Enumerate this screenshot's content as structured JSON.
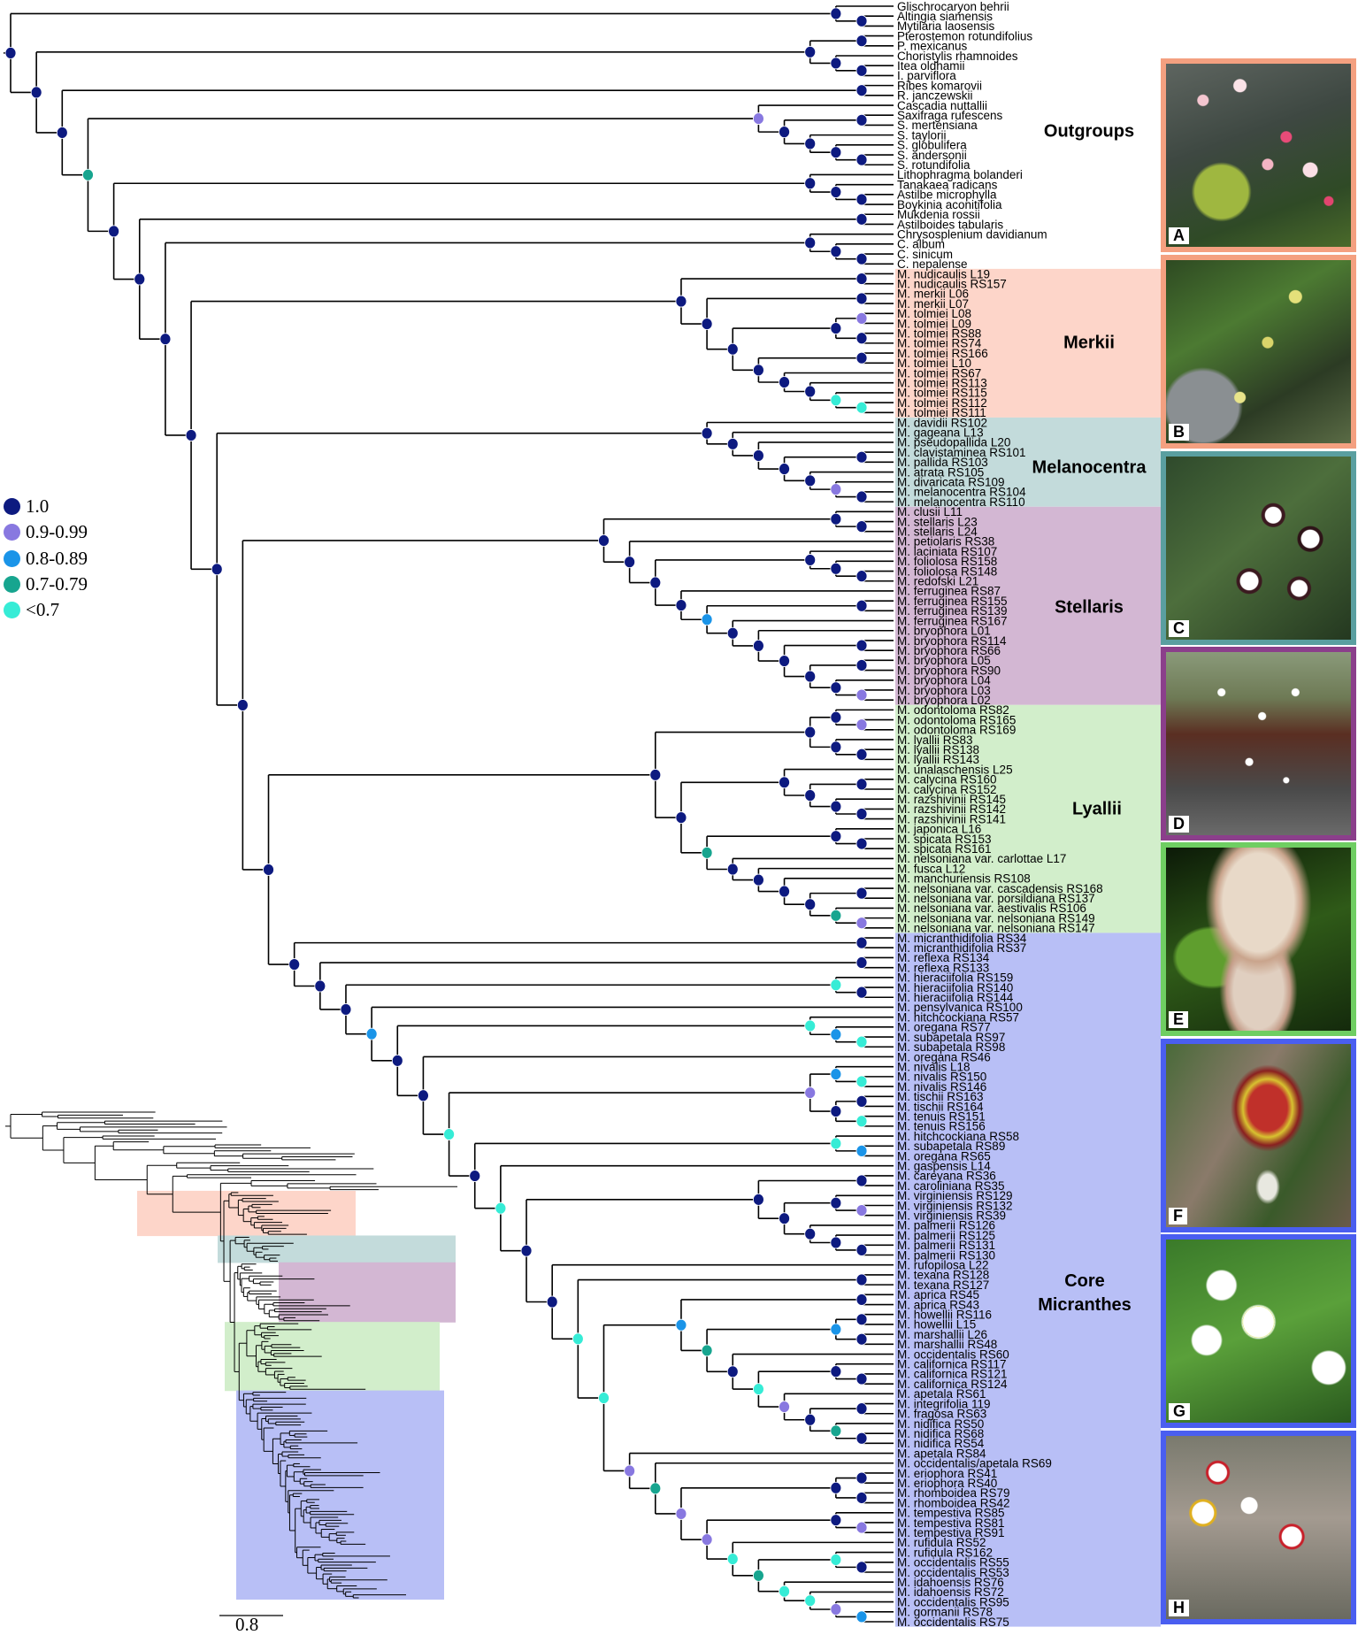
{
  "support_legend": [
    {
      "key": "A",
      "label": "1.0",
      "color": "#0d1a80"
    },
    {
      "key": "P",
      "label": "0.9-0.99",
      "color": "#8878e0"
    },
    {
      "key": "B",
      "label": "0.8-0.89",
      "color": "#1a94e8"
    },
    {
      "key": "T",
      "label": "0.7-0.79",
      "color": "#17a58f"
    },
    {
      "key": "C",
      "label": "<0.7",
      "color": "#36ecd6"
    }
  ],
  "tree": {
    "newick": "((Glischrocaryon behrii,(Altingia siamensis,Mytilaria laosensis)A)A,(((Pterostemon rotundifolius,P. mexicanus)A,(Choristylis rhamnoides,(Itea oldhamii,I. parviflora)A)A)A,((Ribes komarovii,R. janczewskii)A,((Cascadia nuttallii,((Saxifraga rufescens,S. mertensiana)A,(S. taylorii,(S. globulifera,(S. andersonii,S. rotundifolia)A)A)A)A)P,((Lithophragma bolanderi,(Tanakaea radicans,(Astilbe microphylla,Boykinia aconitifolia)A)A)A,((Mukdenia rossii,Astilboides tabularis)A,((Chrysosplenium davidianum,(C. album,(C. sinicum,C. nepalense)A)A)A,(((M. nudicaulis L19,M. nudicaulis RS157)A,((M. merkii L06,M. merkii L07)A,(((M. tolmiei L08,M. tolmiei L09)P,(M. tolmiei RS88,M. tolmiei RS74)A)A,((M. tolmiei RS166,M. tolmiei L10)A,(M. tolmiei RS67,(M. tolmiei RS113,(M. tolmiei RS115,(M. tolmiei RS112,M. tolmiei RS111)C)C)A)A)A)A)A)A,((M. davidii RS102,(M. gageana L13,(M. pseudopallida L20,((M. clavistaminea RS101,M. pallida RS103)A,(M. atrata RS105,(M. divaricata RS109,(M. melanocentra RS104,M. melanocentra RS110)A)P)A)A)A)A)A,(((M. clusii L11,(M. stellaris L23,M. stellaris L24)A)A,(M. petiolaris RS38,((M. laciniata RS107,(M. foliolosa RS158,(M. foliolosa RS148,M. redofski L21)A)A)A,(M. ferruginea RS87,((M. ferruginea RS155,M. ferruginea RS139)A,(M. ferruginea RS167,(M. bryophora L01,((M. bryophora RS114,M. bryophora RS66)A,((M. bryophora L05,M. bryophora RS90)A,(M. bryophora L04,(M. bryophora L03,M. bryophora L02)P)A)A)A)A)A)B)A)A)A)A,((((M. odontoloma RS82,(M. odontoloma RS165,M. odontoloma RS169)P)A,(M. lyallii RS83,(M. lyallii RS138,M. lyallii RS143)A)A)A,((M. unalaschensis L25,((M. calycina RS160,M. calycina RS152)A,(M. razshivinii RS145,(M. razshivinii RS142,M. razshivinii RS141)A)A)A)A,((M. japonica L16,(M. spicata RS153,M. spicata RS161)A)A,(M. nelsoniana var. carlottae L17,(M. fusca L12,(M. manchuriensis RS108,((M. nelsoniana var. cascadensis RS168,M. nelsoniana var. porsildiana RS137)A,(M. nelsoniana var. aestivalis RS106,(M. nelsoniana var. nelsoniana RS149,M. nelsoniana var. nelsoniana RS147)P)T)A)A)A)A)T)A)A,((M. micranthidifolia RS34,M. micranthidifolia RS37)A,((M. reflexa RS134,M. reflexa RS133)A,((M. hieraciifolia RS159,(M. hieraciifolia RS140,M. hieraciifolia RS144)A)C,(M. pensylvanica RS100,((M. hitchcockiana RS57,(M. oregana RS77,(M. subapetala RS97,M. subapetala RS98)C)B)C,(M. oregana RS46,(((M. nivalis L18,(M. nivalis RS150,M. nivalis RS146)C)B,((M. tischii RS163,M. tischii RS164)A,(M. tenuis RS151,M. tenuis RS156)C)A)P,((M. hitchcockiana RS58,(M. subapetala RS89,M. oregana RS65)B)C,(M. gaspensis L14,(((M. careyana RS36,M. caroliniana RS35)A,((M. virginiensis RS129,(M. virginiensis RS132,M. virginiensis RS39)P)A,(M. palmerii RS126,(M. palmerii RS125,(M. palmerii RS131,M. palmerii RS130)A)A)A)A)A,(M. rufopilosa L22,((M. texana RS128,M. texana RS127)A,(((M. aprica RS45,M. aprica RS43)A,(((M. howellii RS116,M. howellii L15)A,(M. marshallii L26,M. marshallii RS48)A)B,(M. occidentalis RS60,((M. californica RS117,(M. californica RS121,M. californica RS124)A)A,(M. apetala RS61,((M. integrifolia 119,M. fragosa RS63)A,(M. nidifica RS50,(M. nidifica RS68,M. nidifica RS54)A)T)A)P)C)A)T)B,(M. apetala RS84,(M. occidentalis/apetala RS69,(((M. eriophora RS41,M. eriophora RS40)A,(M. rhomboidea RS79,M. rhomboidea RS42)A)A,((M. tempestiva RS85,(M. tempestiva RS81,M. tempestiva RS91)P)A,(M. rufidula RS52,((M. rufidula RS162,(M. occidentalis RS55,M. occidentalis RS53)A)C,(M. idahoensis RS76,(M. idahoensis RS72,(M. occidentalis RS95,(M. gormanii RS78,M. occidentalis RS75)B)P)C)C)T)C)P)P)T)P)C)C)A)A)C)A)C)A)A)B)A)A)A)A)A)A)A)A)A)A)T)A)A)A;"
  },
  "clades": [
    {
      "label": "Outgroups",
      "label_lines": [
        "Outgroups"
      ],
      "first": "Glischrocaryon behrii",
      "last": "C. nepalense",
      "color": null
    },
    {
      "label": "Merkii",
      "label_lines": [
        "Merkii"
      ],
      "first": "M. nudicaulis L19",
      "last": "M. tolmiei RS111",
      "color": "#fdd5c9"
    },
    {
      "label": "Melanocentra",
      "label_lines": [
        "Melanocentra"
      ],
      "first": "M. davidii RS102",
      "last": "M. melanocentra RS110",
      "color": "#c3dbdb"
    },
    {
      "label": "Stellaris",
      "label_lines": [
        "Stellaris"
      ],
      "first": "M. clusii L11",
      "last": "M. bryophora L02",
      "color": "#d3b7d3"
    },
    {
      "label": "Lyallii",
      "label_lines": [
        "Lyallii"
      ],
      "first": "M. odontoloma RS82",
      "last": "M. nelsoniana var. nelsoniana RS147",
      "color": "#d2eecb"
    },
    {
      "label": "Core Micranthes",
      "label_lines": [
        "Core",
        "Micranthes"
      ],
      "first": "M. micranthidifolia RS34",
      "last": "M. occidentalis RS75",
      "color": "#b8bff6"
    }
  ],
  "photos": [
    {
      "letter": "A",
      "border": "#f4a080"
    },
    {
      "letter": "B",
      "border": "#f4a080"
    },
    {
      "letter": "C",
      "border": "#5a9fa0"
    },
    {
      "letter": "D",
      "border": "#8b3f8b"
    },
    {
      "letter": "E",
      "border": "#6fce62"
    },
    {
      "letter": "F",
      "border": "#4a5ef0"
    },
    {
      "letter": "G",
      "border": "#4a5ef0"
    },
    {
      "letter": "H",
      "border": "#4a5ef0"
    }
  ],
  "inset": {
    "scale_bar_label": "0.8"
  }
}
